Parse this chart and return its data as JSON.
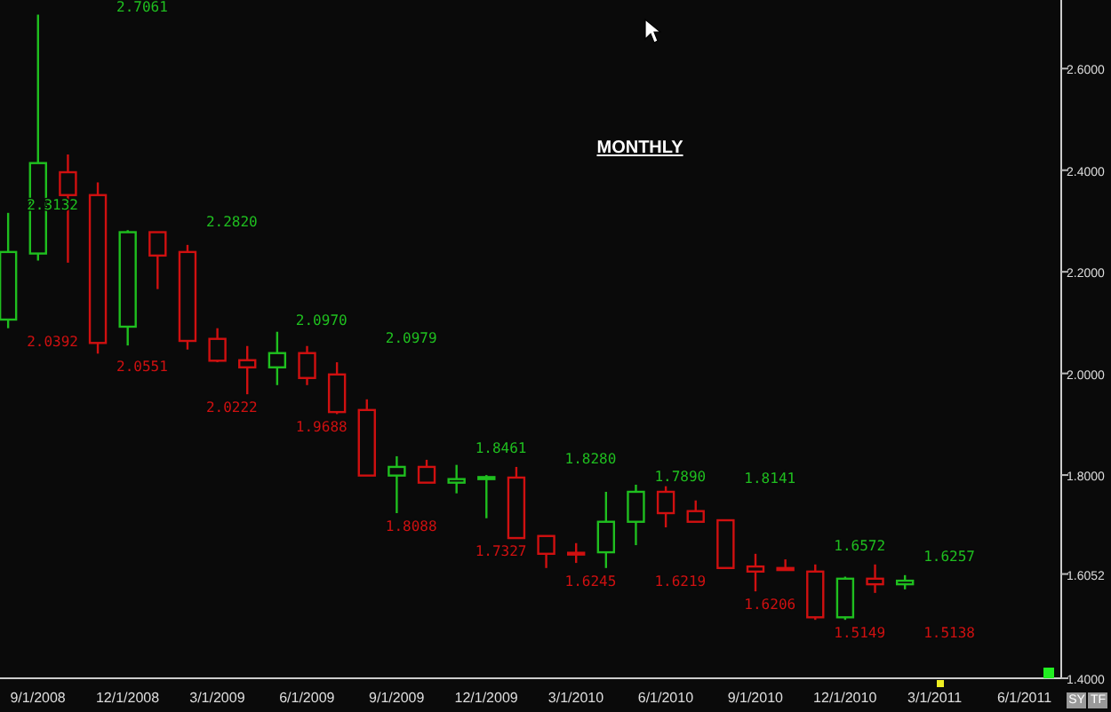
{
  "chart_data": {
    "type": "candlestick",
    "title": "MONTHLY",
    "x": [
      "2008-08",
      "2008-09",
      "2008-10",
      "2008-11",
      "2008-12",
      "2009-01",
      "2009-02",
      "2009-03",
      "2009-04",
      "2009-05",
      "2009-06",
      "2009-07",
      "2009-08",
      "2009-09",
      "2009-10",
      "2009-11",
      "2009-12",
      "2010-01",
      "2010-02",
      "2010-03",
      "2010-04",
      "2010-05",
      "2010-06",
      "2010-07",
      "2010-08",
      "2010-09",
      "2010-10",
      "2010-11",
      "2010-12",
      "2011-01",
      "2011-02"
    ],
    "ohlc": [
      [
        2.106,
        2.316,
        2.089,
        2.239
      ],
      [
        2.236,
        2.706,
        2.222,
        2.414
      ],
      [
        2.396,
        2.431,
        2.218,
        2.351
      ],
      [
        2.351,
        2.376,
        2.039,
        2.06
      ],
      [
        2.092,
        2.282,
        2.055,
        2.278
      ],
      [
        2.278,
        2.278,
        2.166,
        2.232
      ],
      [
        2.239,
        2.253,
        2.047,
        2.064
      ],
      [
        2.068,
        2.089,
        2.022,
        2.025
      ],
      [
        2.026,
        2.054,
        1.959,
        2.012
      ],
      [
        2.012,
        2.082,
        1.977,
        2.04
      ],
      [
        2.04,
        2.054,
        1.977,
        1.991
      ],
      [
        1.998,
        2.022,
        1.92,
        1.924
      ],
      [
        1.928,
        1.949,
        1.799,
        1.799
      ],
      [
        1.799,
        1.837,
        1.725,
        1.816
      ],
      [
        1.816,
        1.83,
        1.785,
        1.785
      ],
      [
        1.785,
        1.82,
        1.764,
        1.792
      ],
      [
        1.792,
        1.8,
        1.715,
        1.796
      ],
      [
        1.795,
        1.816,
        1.676,
        1.676
      ],
      [
        1.68,
        1.68,
        1.617,
        1.645
      ],
      [
        1.647,
        1.666,
        1.627,
        1.645
      ],
      [
        1.648,
        1.767,
        1.617,
        1.708
      ],
      [
        1.708,
        1.781,
        1.662,
        1.767
      ],
      [
        1.767,
        1.778,
        1.697,
        1.725
      ],
      [
        1.729,
        1.75,
        1.708,
        1.708
      ],
      [
        1.711,
        1.711,
        1.617,
        1.617
      ],
      [
        1.62,
        1.645,
        1.571,
        1.61
      ],
      [
        1.617,
        1.634,
        1.613,
        1.613
      ],
      [
        1.61,
        1.624,
        1.515,
        1.52
      ],
      [
        1.52,
        1.6,
        1.515,
        1.596
      ],
      [
        1.596,
        1.624,
        1.568,
        1.585
      ],
      [
        1.585,
        1.603,
        1.575,
        1.592
      ]
    ],
    "colors": [
      "#1fbf1f",
      "#1fbf1f",
      "#d01010",
      "#d01010",
      "#1fbf1f",
      "#d01010",
      "#d01010",
      "#d01010",
      "#d01010",
      "#1fbf1f",
      "#d01010",
      "#d01010",
      "#d01010",
      "#1fbf1f",
      "#d01010",
      "#1fbf1f",
      "#1fbf1f",
      "#d01010",
      "#d01010",
      "#d01010",
      "#1fbf1f",
      "#1fbf1f",
      "#d01010",
      "#d01010",
      "#d01010",
      "#d01010",
      "#d01010",
      "#d01010",
      "#1fbf1f",
      "#d01010",
      "#1fbf1f"
    ],
    "xlim": [
      "2008-07-23",
      "2011-07-08"
    ],
    "xticks": [
      {
        "value": "2008-09",
        "label": "9/1/2008"
      },
      {
        "value": "2008-12",
        "label": "12/1/2008"
      },
      {
        "value": "2009-03",
        "label": "3/1/2009"
      },
      {
        "value": "2009-06",
        "label": "6/1/2009"
      },
      {
        "value": "2009-09",
        "label": "9/1/2009"
      },
      {
        "value": "2009-12",
        "label": "12/1/2009"
      },
      {
        "value": "2010-03",
        "label": "3/1/2010"
      },
      {
        "value": "2010-06",
        "label": "6/1/2010"
      },
      {
        "value": "2010-09",
        "label": "9/1/2010"
      },
      {
        "value": "2010-12",
        "label": "12/1/2010"
      },
      {
        "value": "2011-03",
        "label": "3/1/2011"
      },
      {
        "value": "2011-06",
        "label": "6/1/2011"
      }
    ],
    "ylim": [
      1.4,
      2.735
    ],
    "yticks": [
      {
        "value": 1.4,
        "label": "1.4000"
      },
      {
        "value": 1.6052,
        "label": "1.6052"
      },
      {
        "value": 1.8,
        "label": "1.8000"
      },
      {
        "value": 2.0,
        "label": "2.0000"
      },
      {
        "value": 2.2,
        "label": "2.2000"
      },
      {
        "value": 2.4,
        "label": "2.4000"
      },
      {
        "value": 2.6,
        "label": "2.6000"
      }
    ],
    "annotations": [
      "2.3132",
      "2.0392",
      "2.7061",
      "2.0551",
      "2.2820",
      "2.0222",
      "2.0970",
      "1.9688",
      "2.0979",
      "1.8088",
      "1.8461",
      "1.7327",
      "1.8280",
      "1.6245",
      "1.7890",
      "1.6219",
      "1.8141",
      "1.6206",
      "1.6572",
      "1.5149",
      "1.6257",
      "1.5138",
      "SY",
      "TF"
    ]
  }
}
